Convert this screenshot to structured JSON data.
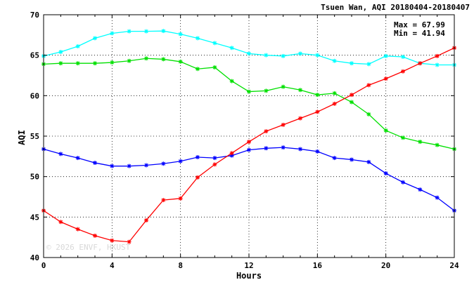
{
  "chart_data": {
    "type": "line",
    "title": "Tsuen Wan, AQI 20180404-20180407",
    "xlabel": "Hours",
    "ylabel": "AQI",
    "xlim": [
      0,
      24
    ],
    "ylim": [
      40,
      70
    ],
    "xticks": [
      0,
      4,
      8,
      12,
      16,
      20,
      24
    ],
    "yticks": [
      40,
      45,
      50,
      55,
      60,
      65,
      70
    ],
    "grid": true,
    "stats": {
      "max": "Max = 67.99",
      "min": "Min = 41.94"
    },
    "watermark": "© 2026 ENVF, HKUST",
    "x": [
      0,
      1,
      2,
      3,
      4,
      5,
      6,
      7,
      8,
      9,
      10,
      11,
      12,
      13,
      14,
      15,
      16,
      17,
      18,
      19,
      20,
      21,
      22,
      23,
      24
    ],
    "series": [
      {
        "color": "#00ffff",
        "values": [
          64.9,
          65.4,
          66.1,
          67.1,
          67.7,
          67.95,
          67.95,
          67.99,
          67.6,
          67.1,
          66.5,
          65.9,
          65.2,
          65.0,
          64.9,
          65.2,
          65.0,
          64.3,
          64.0,
          63.9,
          64.9,
          64.8,
          64.0,
          63.8,
          63.8
        ]
      },
      {
        "color": "#00e000",
        "values": [
          63.9,
          64.0,
          64.0,
          64.0,
          64.1,
          64.3,
          64.6,
          64.5,
          64.2,
          63.3,
          63.5,
          61.8,
          60.5,
          60.6,
          61.1,
          60.7,
          60.1,
          60.3,
          59.2,
          57.7,
          55.7,
          54.8,
          54.3,
          53.9,
          53.4
        ]
      },
      {
        "color": "#0000ff",
        "values": [
          53.4,
          52.8,
          52.3,
          51.7,
          51.3,
          51.3,
          51.4,
          51.6,
          51.9,
          52.4,
          52.3,
          52.6,
          53.3,
          53.5,
          53.6,
          53.4,
          53.1,
          52.3,
          52.1,
          51.8,
          50.4,
          49.3,
          48.4,
          47.4,
          45.8
        ]
      },
      {
        "color": "#ff0000",
        "values": [
          45.8,
          44.4,
          43.5,
          42.7,
          42.1,
          41.94,
          44.6,
          47.1,
          47.3,
          49.9,
          51.5,
          52.9,
          54.3,
          55.6,
          56.4,
          57.2,
          58.0,
          59.0,
          60.1,
          61.3,
          62.1,
          63.0,
          64.0,
          64.9,
          65.9
        ]
      }
    ]
  }
}
